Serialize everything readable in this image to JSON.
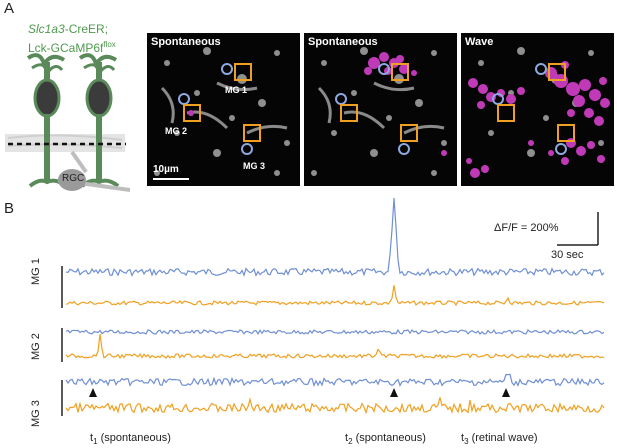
{
  "panel_a": {
    "letter": "A",
    "construct_line1_italic": "Slc1a3",
    "construct_line1_rest": "-CreER;",
    "construct_line2": "Lck-GCaMP6f",
    "construct_sup": "flox",
    "rgc_label": "RGC",
    "colors": {
      "glia": "#5a8a5a",
      "rgc": "#bdbdbd",
      "magenta": "#c03ab8",
      "orange": "#f0a020",
      "blue": "#8ea8e0"
    },
    "images": [
      {
        "title": "Spontaneous"
      },
      {
        "title": "Spontaneous"
      },
      {
        "title": "Wave"
      }
    ],
    "mg_labels": [
      "MG 1",
      "MG 2",
      "MG 3"
    ],
    "scale_bar": "10µm"
  },
  "panel_b": {
    "letter": "B",
    "scale_y": "ΔF/F = 200%",
    "scale_x": "30 sec",
    "rows": [
      "MG 1",
      "MG 2",
      "MG 3"
    ],
    "series_colors": {
      "top": "#6f8fd4",
      "bottom": "#f0a020"
    },
    "markers": [
      {
        "base": "t",
        "sub": "1",
        "rest": " (spontaneous)"
      },
      {
        "base": "t",
        "sub": "2",
        "rest": " (spontaneous)"
      },
      {
        "base": "t",
        "sub": "3",
        "rest": " (retinal wave)"
      }
    ]
  }
}
